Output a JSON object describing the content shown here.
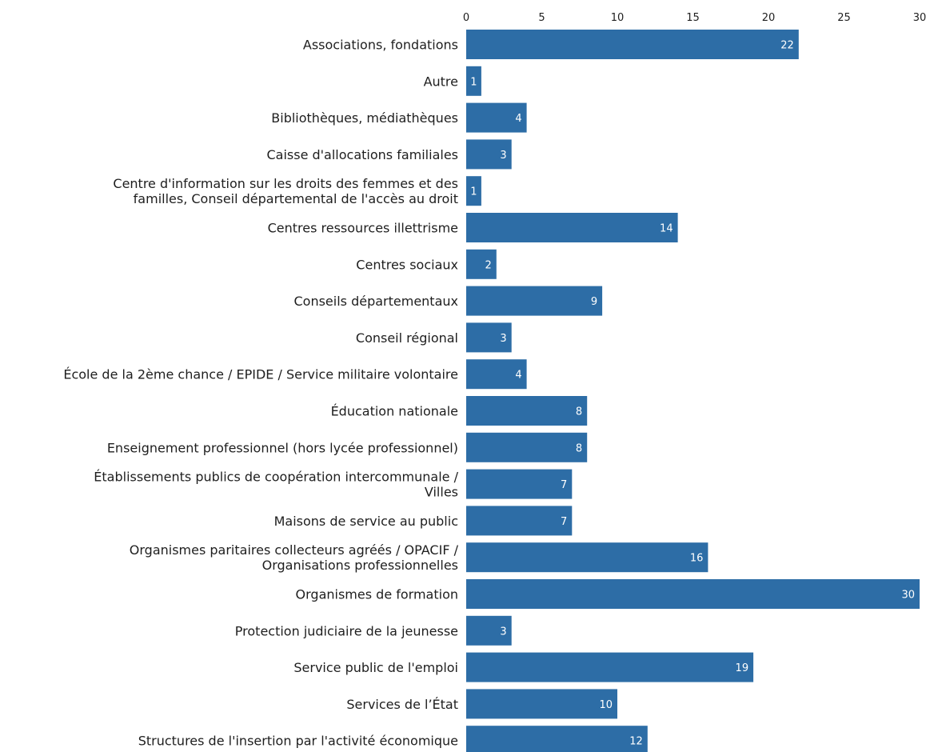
{
  "chart_data": {
    "type": "bar",
    "orientation": "horizontal",
    "title": "",
    "xlabel": "",
    "ylabel": "",
    "xlim": [
      0,
      30
    ],
    "ticks": [
      0,
      5,
      10,
      15,
      20,
      25,
      30
    ],
    "axis_position": "top",
    "grid": false,
    "legend": "none",
    "bar_color": "#2d6da6",
    "categories": [
      "Associations, fondations",
      "Autre",
      "Bibliothèques, médiathèques",
      "Caisse d'allocations familiales",
      "Centre d'information sur les droits des femmes et des familles, Conseil départemental de l'accès au droit",
      "Centres ressources illettrisme",
      "Centres sociaux",
      "Conseils départementaux",
      "Conseil régional",
      "École de la 2ème chance / EPIDE / Service militaire volontaire",
      "Éducation nationale",
      "Enseignement professionnel (hors lycée professionnel)",
      "Établissements publics de coopération intercommunale / Villes",
      "Maisons de service au public",
      "Organismes paritaires collecteurs agréés / OPACIF / Organisations professionnelles",
      "Organismes de formation",
      "Protection judiciaire de la jeunesse",
      "Service public de l'emploi",
      "Services de l’État",
      "Structures de l'insertion par l'activité économique"
    ],
    "category_lines": [
      [
        "Associations, fondations"
      ],
      [
        "Autre"
      ],
      [
        "Bibliothèques, médiathèques"
      ],
      [
        "Caisse d'allocations familiales"
      ],
      [
        "Centre d'information sur les droits des femmes et des",
        "familles, Conseil départemental de l'accès au droit"
      ],
      [
        "Centres ressources illettrisme"
      ],
      [
        "Centres sociaux"
      ],
      [
        "Conseils départementaux"
      ],
      [
        "Conseil régional"
      ],
      [
        "École de la 2ème chance / EPIDE / Service militaire volontaire"
      ],
      [
        "Éducation nationale"
      ],
      [
        "Enseignement professionnel (hors lycée professionnel)"
      ],
      [
        "Établissements publics de coopération intercommunale /",
        "Villes"
      ],
      [
        "Maisons de service au public"
      ],
      [
        "Organismes paritaires collecteurs agréés / OPACIF /",
        "Organisations professionnelles"
      ],
      [
        "Organismes de formation"
      ],
      [
        "Protection judiciaire de la jeunesse"
      ],
      [
        "Service public de l'emploi"
      ],
      [
        "Services de l’État"
      ],
      [
        "Structures de l'insertion par l'activité économique"
      ]
    ],
    "values": [
      22,
      1,
      4,
      3,
      1,
      14,
      2,
      9,
      3,
      4,
      8,
      8,
      7,
      7,
      16,
      30,
      3,
      19,
      10,
      12
    ]
  }
}
